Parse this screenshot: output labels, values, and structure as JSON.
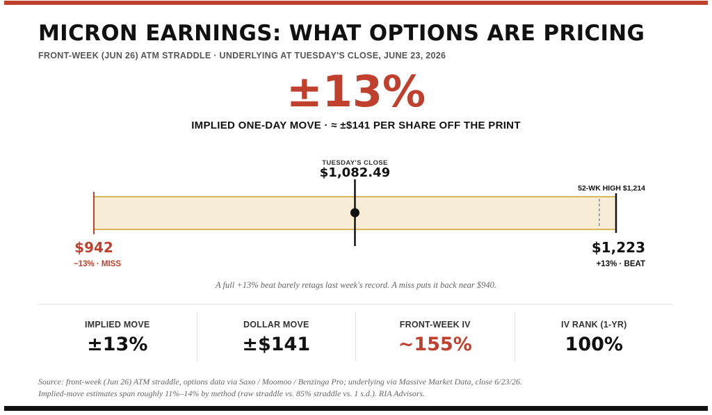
{
  "title": "MICRON EARNINGS: WHAT OPTIONS ARE PRICING",
  "subtitle": "FRONT-WEEK (JUN 26) ATM STRADDLE · UNDERLYING AT TUESDAY'S CLOSE, JUNE 23, 2026",
  "hero": {
    "value": "±13%",
    "caption": "IMPLIED ONE-DAY MOVE · ≈ ±$141 PER SHARE OFF THE PRINT"
  },
  "colors": {
    "accent": "#c0402e",
    "band_fill": "#f7ecd6",
    "band_border": "#d9b65a",
    "ink": "#111111"
  },
  "chart_data": {
    "type": "range",
    "range": {
      "low": 942,
      "high": 1223
    },
    "close": {
      "value": 1082.49,
      "label": "TUESDAY'S CLOSE",
      "value_label": "$1,082.49"
    },
    "low_marker": {
      "value": 942,
      "value_label": "$942",
      "sub_label": "−13% · MISS"
    },
    "high_marker": {
      "value": 1223,
      "value_label": "$1,223",
      "sub_label": "+13% · BEAT"
    },
    "reference": {
      "value": 1214,
      "label": "52-WK HIGH $1,214"
    }
  },
  "caption": "A full +13% beat barely retags last week's record. A miss puts it back near $940.",
  "stats": [
    {
      "label": "IMPLIED MOVE",
      "value": "±13%"
    },
    {
      "label": "DOLLAR MOVE",
      "value": "±$141"
    },
    {
      "label": "FRONT-WEEK IV",
      "value": "~155%"
    },
    {
      "label": "IV RANK (1-YR)",
      "value": "100%"
    }
  ],
  "source": [
    "Source: front-week (Jun 26) ATM straddle, options data via Saxo / Moomoo / Benzinga Pro; underlying via Massive Market Data, close 6/23/26.",
    "Implied-move estimates span roughly 11%–14% by method (raw straddle vs. 85% straddle vs. 1 s.d.). RIA Advisors."
  ]
}
